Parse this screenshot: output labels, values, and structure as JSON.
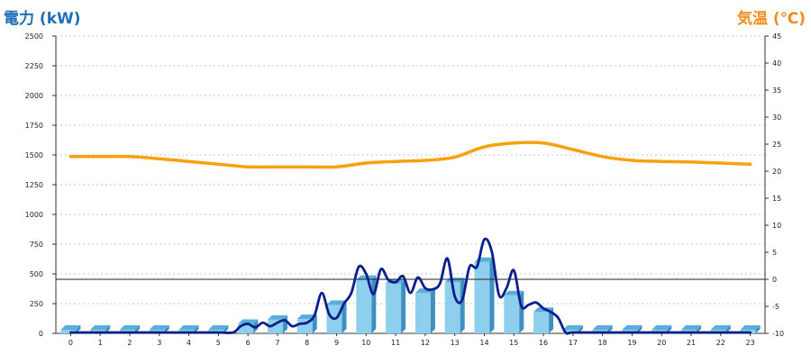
{
  "chart_data": {
    "type": "bar+line",
    "left_axis": {
      "label": "電力 (kW)",
      "ylim": [
        0,
        2500
      ],
      "ticks": [
        0,
        250,
        500,
        750,
        1000,
        1250,
        1500,
        1750,
        2000,
        2250,
        2500
      ]
    },
    "right_axis": {
      "label": "気温 (℃)",
      "ylim": [
        -10,
        45
      ],
      "ticks": [
        -10,
        -5,
        0,
        5,
        10,
        15,
        20,
        25,
        30,
        35,
        40,
        45
      ]
    },
    "categories": [
      "0",
      "1",
      "2",
      "3",
      "4",
      "5",
      "6",
      "7",
      "8",
      "9",
      "10",
      "11",
      "12",
      "13",
      "14",
      "15",
      "16",
      "17",
      "18",
      "19",
      "20",
      "21",
      "22",
      "23"
    ],
    "grid": true,
    "reference_line": {
      "axis": "right",
      "value": 0
    },
    "bar_series": {
      "axis": "left",
      "values": [
        0,
        0,
        0,
        0,
        0,
        0,
        80,
        115,
        120,
        240,
        450,
        420,
        340,
        430,
        600,
        320,
        180,
        10,
        0,
        0,
        0,
        0,
        0,
        0
      ]
    },
    "power_line": {
      "axis": "left",
      "color": "#0a1e8c",
      "points": [
        [
          0,
          0
        ],
        [
          1,
          0
        ],
        [
          2,
          0
        ],
        [
          3,
          0
        ],
        [
          4,
          0
        ],
        [
          5,
          0
        ],
        [
          5.5,
          0
        ],
        [
          5.75,
          60
        ],
        [
          6,
          80
        ],
        [
          6.25,
          50
        ],
        [
          6.5,
          90
        ],
        [
          6.75,
          60
        ],
        [
          7,
          90
        ],
        [
          7.25,
          110
        ],
        [
          7.5,
          60
        ],
        [
          7.75,
          80
        ],
        [
          8,
          90
        ],
        [
          8.25,
          150
        ],
        [
          8.5,
          340
        ],
        [
          8.75,
          160
        ],
        [
          9,
          130
        ],
        [
          9.25,
          250
        ],
        [
          9.5,
          340
        ],
        [
          9.75,
          560
        ],
        [
          10,
          500
        ],
        [
          10.25,
          330
        ],
        [
          10.5,
          540
        ],
        [
          10.75,
          450
        ],
        [
          11,
          430
        ],
        [
          11.25,
          480
        ],
        [
          11.5,
          340
        ],
        [
          11.75,
          470
        ],
        [
          12,
          380
        ],
        [
          12.25,
          370
        ],
        [
          12.5,
          420
        ],
        [
          12.75,
          630
        ],
        [
          13,
          310
        ],
        [
          13.25,
          280
        ],
        [
          13.5,
          560
        ],
        [
          13.75,
          560
        ],
        [
          14,
          790
        ],
        [
          14.25,
          690
        ],
        [
          14.5,
          320
        ],
        [
          14.75,
          380
        ],
        [
          15,
          530
        ],
        [
          15.25,
          230
        ],
        [
          15.5,
          240
        ],
        [
          15.75,
          260
        ],
        [
          16,
          210
        ],
        [
          16.25,
          180
        ],
        [
          16.5,
          130
        ],
        [
          16.75,
          0
        ],
        [
          17,
          0
        ],
        [
          18,
          0
        ],
        [
          19,
          0
        ],
        [
          20,
          0
        ],
        [
          21,
          0
        ],
        [
          22,
          0
        ],
        [
          23,
          0
        ]
      ]
    },
    "temperature_line": {
      "axis": "right",
      "color": "#f7a10f",
      "points": [
        [
          0,
          22.7
        ],
        [
          1,
          22.7
        ],
        [
          2,
          22.7
        ],
        [
          3,
          22.3
        ],
        [
          4,
          21.8
        ],
        [
          5,
          21.3
        ],
        [
          6,
          20.8
        ],
        [
          7,
          20.8
        ],
        [
          8,
          20.8
        ],
        [
          9,
          20.8
        ],
        [
          10,
          21.5
        ],
        [
          11,
          21.8
        ],
        [
          12,
          22.0
        ],
        [
          13,
          22.6
        ],
        [
          14,
          24.5
        ],
        [
          15,
          25.2
        ],
        [
          16,
          25.2
        ],
        [
          17,
          24.0
        ],
        [
          18,
          22.7
        ],
        [
          19,
          22.0
        ],
        [
          20,
          21.8
        ],
        [
          21,
          21.7
        ],
        [
          22,
          21.5
        ],
        [
          23,
          21.3
        ]
      ]
    }
  },
  "colors": {
    "left_title": "#1f6fb5",
    "right_title": "#f08c1e",
    "bar_front": "#8ecfee",
    "bar_side": "#3f8fbf",
    "bar_top": "#5aaedb",
    "grid": "#c4c4c4"
  }
}
